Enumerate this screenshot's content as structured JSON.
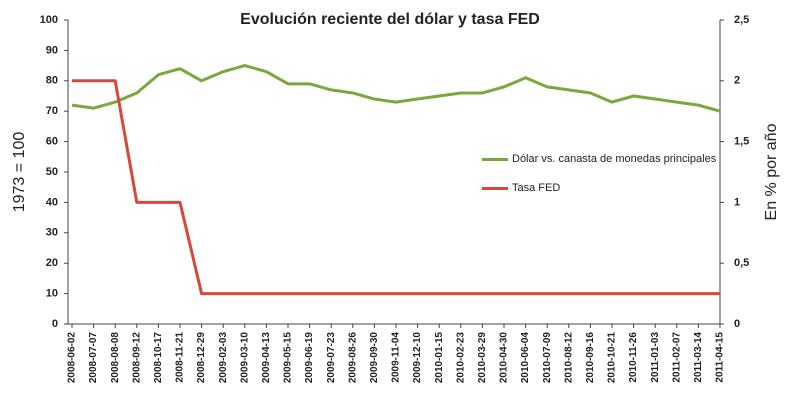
{
  "chart_data": {
    "type": "line",
    "title": "Evolución reciente del dólar y tasa FED",
    "y_label": "1973 = 100",
    "y2_label": "En % por año",
    "categories": [
      "2008-06-02",
      "2008-07-07",
      "2008-08-08",
      "2008-09-12",
      "2008-10-17",
      "2008-11-21",
      "2008-12-29",
      "2009-02-03",
      "2009-03-10",
      "2009-04-13",
      "2009-05-15",
      "2009-06-19",
      "2009-07-23",
      "2009-08-26",
      "2009-09-30",
      "2009-11-04",
      "2009-12-10",
      "2010-01-15",
      "2010-02-23",
      "2010-03-29",
      "2010-04-30",
      "2010-06-04",
      "2010-07-09",
      "2010-08-12",
      "2010-09-16",
      "2010-10-21",
      "2010-11-26",
      "2011-01-03",
      "2011-02-07",
      "2011-03-14",
      "2011-04-15"
    ],
    "series": [
      {
        "name": "Dólar vs. canasta de monedas principales",
        "color": "#7aa83c",
        "values": [
          72,
          71,
          73,
          76,
          82,
          84,
          80,
          83,
          85,
          83,
          79,
          79,
          77,
          76,
          74,
          73,
          74,
          75,
          76,
          76,
          78,
          81,
          78,
          77,
          76,
          73,
          75,
          74,
          73,
          72,
          70
        ]
      },
      {
        "name": "Tasa FED",
        "color": "#d9463c",
        "axis": "y2",
        "values": [
          2,
          2,
          2,
          1,
          1,
          1,
          0.25,
          0.25,
          0.25,
          0.25,
          0.25,
          0.25,
          0.25,
          0.25,
          0.25,
          0.25,
          0.25,
          0.25,
          0.25,
          0.25,
          0.25,
          0.25,
          0.25,
          0.25,
          0.25,
          0.25,
          0.25,
          0.25,
          0.25,
          0.25,
          0.25
        ]
      }
    ],
    "ylim": [
      0,
      100
    ],
    "yticks": [
      0,
      10,
      20,
      30,
      40,
      50,
      60,
      70,
      80,
      90,
      100
    ],
    "y2lim": [
      0,
      2.5
    ],
    "y2ticks": [
      0,
      {
        "value": 0.5,
        "label": "0,5"
      },
      1,
      {
        "value": 1.5,
        "label": "1,5"
      },
      2,
      {
        "value": 2.5,
        "label": "2,5"
      }
    ],
    "grid": false,
    "legend": "right"
  }
}
